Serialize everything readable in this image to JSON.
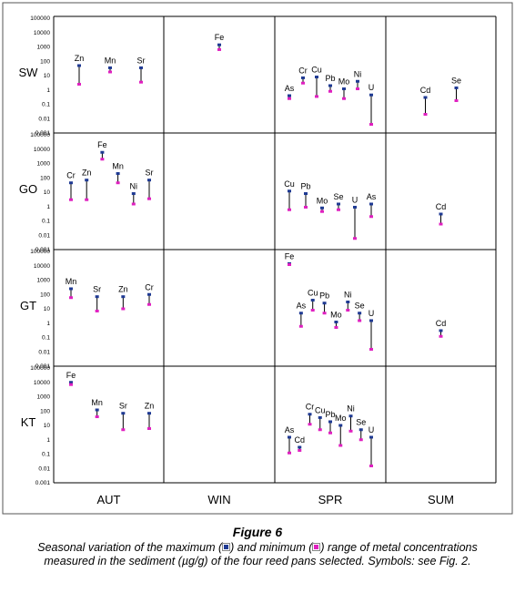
{
  "chart_data": {
    "type": "scatter",
    "title": "",
    "rows": [
      "SW",
      "GO",
      "GT",
      "KT"
    ],
    "columns": [
      "AUT",
      "WIN",
      "SPR",
      "SUM"
    ],
    "y_axis": {
      "scale": "log",
      "ylim": [
        0.001,
        100000
      ],
      "ticks": [
        "0.001",
        "0.01",
        "0.1",
        "1",
        "10",
        "100",
        "1000",
        "10000",
        "100000"
      ]
    },
    "grid": false,
    "colors": {
      "maximum": "#1f3a93",
      "minimum": "#e020c0",
      "range_line": "#000000"
    },
    "panels": [
      {
        "row": "SW",
        "column": "AUT",
        "points": [
          {
            "label": "Zn",
            "max": 50,
            "min": 2.5
          },
          {
            "label": "Mn",
            "max": 35,
            "min": 18
          },
          {
            "label": "Sr",
            "max": 35,
            "min": 3.5
          }
        ]
      },
      {
        "row": "SW",
        "column": "WIN",
        "points": [
          {
            "label": "Fe",
            "max": 1400,
            "min": 650
          }
        ]
      },
      {
        "row": "SW",
        "column": "SPR",
        "points": [
          {
            "label": "As",
            "max": 0.4,
            "min": 0.25
          },
          {
            "label": "Cr",
            "max": 7,
            "min": 3
          },
          {
            "label": "Cu",
            "max": 8,
            "min": 0.35
          },
          {
            "label": "Pb",
            "max": 2,
            "min": 0.8
          },
          {
            "label": "Mo",
            "max": 1.2,
            "min": 0.25
          },
          {
            "label": "Ni",
            "max": 4,
            "min": 1.2
          },
          {
            "label": "U",
            "max": 0.45,
            "min": 0.004
          }
        ]
      },
      {
        "row": "SW",
        "column": "SUM",
        "points": [
          {
            "label": "Cd",
            "max": 0.3,
            "min": 0.02
          },
          {
            "label": "Se",
            "max": 1.4,
            "min": 0.18
          }
        ]
      },
      {
        "row": "GO",
        "column": "AUT",
        "points": [
          {
            "label": "Cr",
            "max": 45,
            "min": 3
          },
          {
            "label": "Zn",
            "max": 70,
            "min": 3
          },
          {
            "label": "Fe",
            "max": 6000,
            "min": 2000
          },
          {
            "label": "Mn",
            "max": 200,
            "min": 45
          },
          {
            "label": "Ni",
            "max": 8,
            "min": 1.5
          },
          {
            "label": "Sr",
            "max": 70,
            "min": 3.5
          }
        ]
      },
      {
        "row": "GO",
        "column": "SPR",
        "points": [
          {
            "label": "Cu",
            "max": 12,
            "min": 0.6
          },
          {
            "label": "Pb",
            "max": 8,
            "min": 0.9
          },
          {
            "label": "Mo",
            "max": 0.8,
            "min": 0.45
          },
          {
            "label": "Se",
            "max": 1.5,
            "min": 0.6
          },
          {
            "label": "U",
            "max": 0.9,
            "min": 0.006
          },
          {
            "label": "As",
            "max": 1.5,
            "min": 0.2
          }
        ]
      },
      {
        "row": "GO",
        "column": "SUM",
        "points": [
          {
            "label": "Cd",
            "max": 0.3,
            "min": 0.06
          }
        ]
      },
      {
        "row": "GT",
        "column": "AUT",
        "points": [
          {
            "label": "Mn",
            "max": 250,
            "min": 60
          },
          {
            "label": "Sr",
            "max": 70,
            "min": 7
          },
          {
            "label": "Zn",
            "max": 70,
            "min": 10
          },
          {
            "label": "Cr",
            "max": 100,
            "min": 20
          }
        ]
      },
      {
        "row": "GT",
        "column": "SPR",
        "points": [
          {
            "label": "Fe",
            "max": 14000,
            "min": 12000
          },
          {
            "label": "As",
            "max": 5,
            "min": 0.6
          },
          {
            "label": "Cu",
            "max": 40,
            "min": 8
          },
          {
            "label": "Pb",
            "max": 25,
            "min": 5
          },
          {
            "label": "Mo",
            "max": 1.2,
            "min": 0.5
          },
          {
            "label": "Ni",
            "max": 30,
            "min": 8
          },
          {
            "label": "Se",
            "max": 5,
            "min": 1.5
          },
          {
            "label": "U",
            "max": 1.5,
            "min": 0.015
          }
        ]
      },
      {
        "row": "GT",
        "column": "SUM",
        "points": [
          {
            "label": "Cd",
            "max": 0.3,
            "min": 0.12
          }
        ]
      },
      {
        "row": "KT",
        "column": "AUT",
        "points": [
          {
            "label": "Fe",
            "max": 10000,
            "min": 7000
          },
          {
            "label": "Mn",
            "max": 120,
            "min": 40
          },
          {
            "label": "Sr",
            "max": 70,
            "min": 5
          },
          {
            "label": "Zn",
            "max": 70,
            "min": 6
          }
        ]
      },
      {
        "row": "KT",
        "column": "SPR",
        "points": [
          {
            "label": "As",
            "max": 1.5,
            "min": 0.12
          },
          {
            "label": "Cd",
            "max": 0.3,
            "min": 0.18
          },
          {
            "label": "Cr",
            "max": 60,
            "min": 12
          },
          {
            "label": "Cu",
            "max": 35,
            "min": 5
          },
          {
            "label": "Pb",
            "max": 18,
            "min": 3
          },
          {
            "label": "Mo",
            "max": 10,
            "min": 0.4
          },
          {
            "label": "Ni",
            "max": 45,
            "min": 4
          },
          {
            "label": "Se",
            "max": 5,
            "min": 1
          },
          {
            "label": "U",
            "max": 1.5,
            "min": 0.015
          }
        ]
      }
    ]
  },
  "caption": {
    "title": "Figure 6",
    "part1": "Seasonal variation of the maximum (",
    "part2": ") and minimum (",
    "part3": ") range of metal concentrations measured in the sediment (µg/g) of the four reed pans selected. Symbols: see Fig. 2."
  }
}
